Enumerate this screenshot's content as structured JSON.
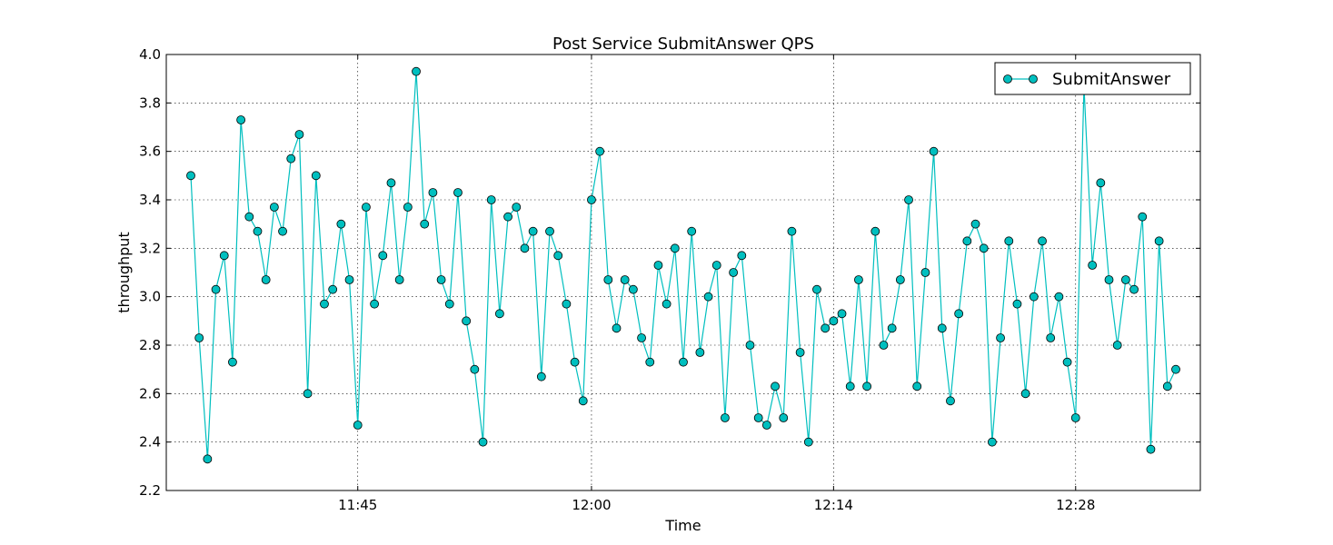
{
  "chart_data": {
    "type": "line",
    "title": "Post Service SubmitAnswer QPS",
    "xlabel": "Time",
    "ylabel": "throughput",
    "ylim": [
      2.2,
      4.0
    ],
    "yticks": [
      "2.2",
      "2.4",
      "2.6",
      "2.8",
      "3.0",
      "3.2",
      "3.4",
      "3.6",
      "3.8",
      "4.0"
    ],
    "xticks": [
      {
        "label": "11:45",
        "index": 20
      },
      {
        "label": "12:00",
        "index": 48
      },
      {
        "label": "12:14",
        "index": 77
      },
      {
        "label": "12:28",
        "index": 106
      }
    ],
    "grid": true,
    "legend_position": "top-right",
    "series": [
      {
        "name": "SubmitAnswer",
        "color": "#00bfbf",
        "values": [
          3.5,
          2.83,
          2.33,
          3.03,
          3.17,
          2.73,
          3.73,
          3.33,
          3.27,
          3.07,
          3.37,
          3.27,
          3.57,
          3.67,
          2.6,
          3.5,
          2.97,
          3.03,
          3.3,
          3.07,
          2.47,
          3.37,
          2.97,
          3.17,
          3.47,
          3.07,
          3.37,
          3.93,
          3.3,
          3.43,
          3.07,
          2.97,
          3.43,
          2.9,
          2.7,
          2.4,
          3.4,
          2.93,
          3.33,
          3.37,
          3.2,
          3.27,
          2.67,
          3.27,
          3.17,
          2.97,
          2.73,
          2.57,
          3.4,
          3.6,
          3.07,
          2.87,
          3.07,
          3.03,
          2.83,
          2.73,
          3.13,
          2.97,
          3.2,
          2.73,
          3.27,
          2.77,
          3.0,
          3.13,
          2.5,
          3.1,
          3.17,
          2.8,
          2.5,
          2.47,
          2.63,
          2.5,
          3.27,
          2.77,
          2.4,
          3.03,
          2.87,
          2.9,
          2.93,
          2.63,
          3.07,
          2.63,
          3.27,
          2.8,
          2.87,
          3.07,
          3.4,
          2.63,
          3.1,
          3.6,
          2.87,
          2.57,
          2.93,
          3.23,
          3.3,
          3.2,
          2.4,
          2.83,
          3.23,
          2.97,
          2.6,
          3.0,
          3.23,
          2.83,
          3.0,
          2.73,
          2.5,
          3.87,
          3.13,
          3.47,
          3.07,
          2.8,
          3.07,
          3.03,
          3.33,
          2.37,
          3.23,
          2.63,
          2.7
        ]
      }
    ]
  }
}
